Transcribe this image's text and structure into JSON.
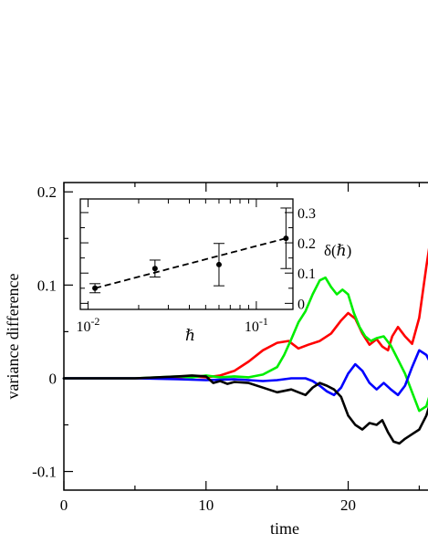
{
  "chart_data": [
    {
      "type": "line",
      "xlabel": "time",
      "ylabel": "variance difference",
      "xlim": [
        0,
        26
      ],
      "ylim": [
        -0.12,
        0.21
      ],
      "x_ticks": [
        0,
        10,
        20
      ],
      "x_tick_labels": [
        "0",
        "10",
        "20"
      ],
      "y_ticks": [
        -0.1,
        0,
        0.1,
        0.2
      ],
      "y_tick_labels": [
        "-0.1",
        "0",
        "0.1",
        "0.2"
      ],
      "series": [
        {
          "color": "#ff0000",
          "x": [
            0,
            5,
            8,
            9,
            10,
            11,
            12,
            13,
            14,
            15,
            15.8,
            16.5,
            17.2,
            18,
            18.8,
            19.5,
            20,
            20.5,
            21,
            21.5,
            22,
            22.4,
            22.8,
            23.1,
            23.5,
            24,
            24.5,
            25,
            25.5,
            26
          ],
          "y": [
            0,
            0,
            0.001,
            0.002,
            0.001,
            0.003,
            0.008,
            0.018,
            0.03,
            0.038,
            0.04,
            0.032,
            0.036,
            0.04,
            0.048,
            0.062,
            0.07,
            0.064,
            0.048,
            0.036,
            0.042,
            0.034,
            0.03,
            0.045,
            0.055,
            0.045,
            0.037,
            0.065,
            0.12,
            0.17
          ]
        },
        {
          "color": "#00ee00",
          "x": [
            0,
            5,
            8,
            9,
            10,
            11,
            12,
            13,
            14,
            15,
            15.5,
            16,
            16.5,
            17,
            17.5,
            18,
            18.4,
            18.8,
            19.2,
            19.6,
            20,
            20.4,
            20.8,
            21.2,
            21.6,
            22,
            22.5,
            23,
            23.5,
            24,
            24.5,
            25,
            25.5,
            26
          ],
          "y": [
            0,
            0,
            0.002,
            0.001,
            0.003,
            0.001,
            0.002,
            0.001,
            0.004,
            0.012,
            0.025,
            0.042,
            0.06,
            0.072,
            0.09,
            0.105,
            0.108,
            0.098,
            0.09,
            0.095,
            0.09,
            0.07,
            0.055,
            0.045,
            0.04,
            0.043,
            0.045,
            0.035,
            0.02,
            0.005,
            -0.015,
            -0.035,
            -0.03,
            -0.005
          ]
        },
        {
          "color": "#0000ff",
          "x": [
            0,
            5,
            8,
            10,
            12,
            13,
            14,
            15,
            16,
            17,
            17.5,
            18,
            18.5,
            19,
            19.5,
            20,
            20.5,
            21,
            21.5,
            22,
            22.5,
            23,
            23.5,
            24,
            24.5,
            25,
            25.5,
            26
          ],
          "y": [
            0,
            0,
            -0.001,
            -0.002,
            -0.001,
            -0.002,
            -0.003,
            -0.002,
            0,
            0,
            -0.003,
            -0.008,
            -0.014,
            -0.018,
            -0.01,
            0.005,
            0.015,
            0.008,
            -0.005,
            -0.012,
            -0.005,
            -0.012,
            -0.018,
            -0.008,
            0.012,
            0.03,
            0.025,
            0.01
          ]
        },
        {
          "color": "#000000",
          "x": [
            0,
            5,
            8,
            9,
            10,
            10.5,
            11,
            11.5,
            12,
            13,
            14,
            15,
            16,
            16.5,
            17,
            17.5,
            18,
            18.5,
            19,
            19.5,
            20,
            20.5,
            21,
            21.5,
            22,
            22.4,
            22.8,
            23.2,
            23.6,
            24,
            24.5,
            25,
            25.5,
            26
          ],
          "y": [
            0,
            0,
            0.002,
            0.003,
            0.002,
            -0.005,
            -0.003,
            -0.006,
            -0.004,
            -0.005,
            -0.01,
            -0.015,
            -0.012,
            -0.015,
            -0.018,
            -0.01,
            -0.005,
            -0.008,
            -0.012,
            -0.02,
            -0.04,
            -0.05,
            -0.055,
            -0.048,
            -0.05,
            -0.045,
            -0.058,
            -0.068,
            -0.07,
            -0.065,
            -0.06,
            -0.055,
            -0.04,
            -0.015
          ]
        }
      ]
    },
    {
      "type": "scatter",
      "xlabel": "ℏ",
      "ylabel": "δ(ℏ)",
      "x_scale": "log",
      "xlim": [
        0.009,
        0.165
      ],
      "ylim": [
        -0.02,
        0.345
      ],
      "x_major_ticks": [
        0.01,
        0.1
      ],
      "x_tick_labels": [
        "10",
        "10"
      ],
      "x_tick_label_exponents": [
        "-2",
        "-1"
      ],
      "y_ticks": [
        0,
        0.1,
        0.2,
        0.3
      ],
      "y_tick_labels": [
        "0",
        "0.1",
        "0.2",
        "0.3"
      ],
      "y_axis_position": "right",
      "points": [
        {
          "x": 0.011,
          "y": 0.05,
          "err": 0.015
        },
        {
          "x": 0.025,
          "y": 0.115,
          "err": 0.028
        },
        {
          "x": 0.06,
          "y": 0.128,
          "err": 0.07
        },
        {
          "x": 0.15,
          "y": 0.215,
          "err": 0.1
        }
      ],
      "fit_line": {
        "style": "dashed",
        "x": [
          0.011,
          0.15
        ],
        "y": [
          0.05,
          0.215
        ]
      }
    }
  ]
}
